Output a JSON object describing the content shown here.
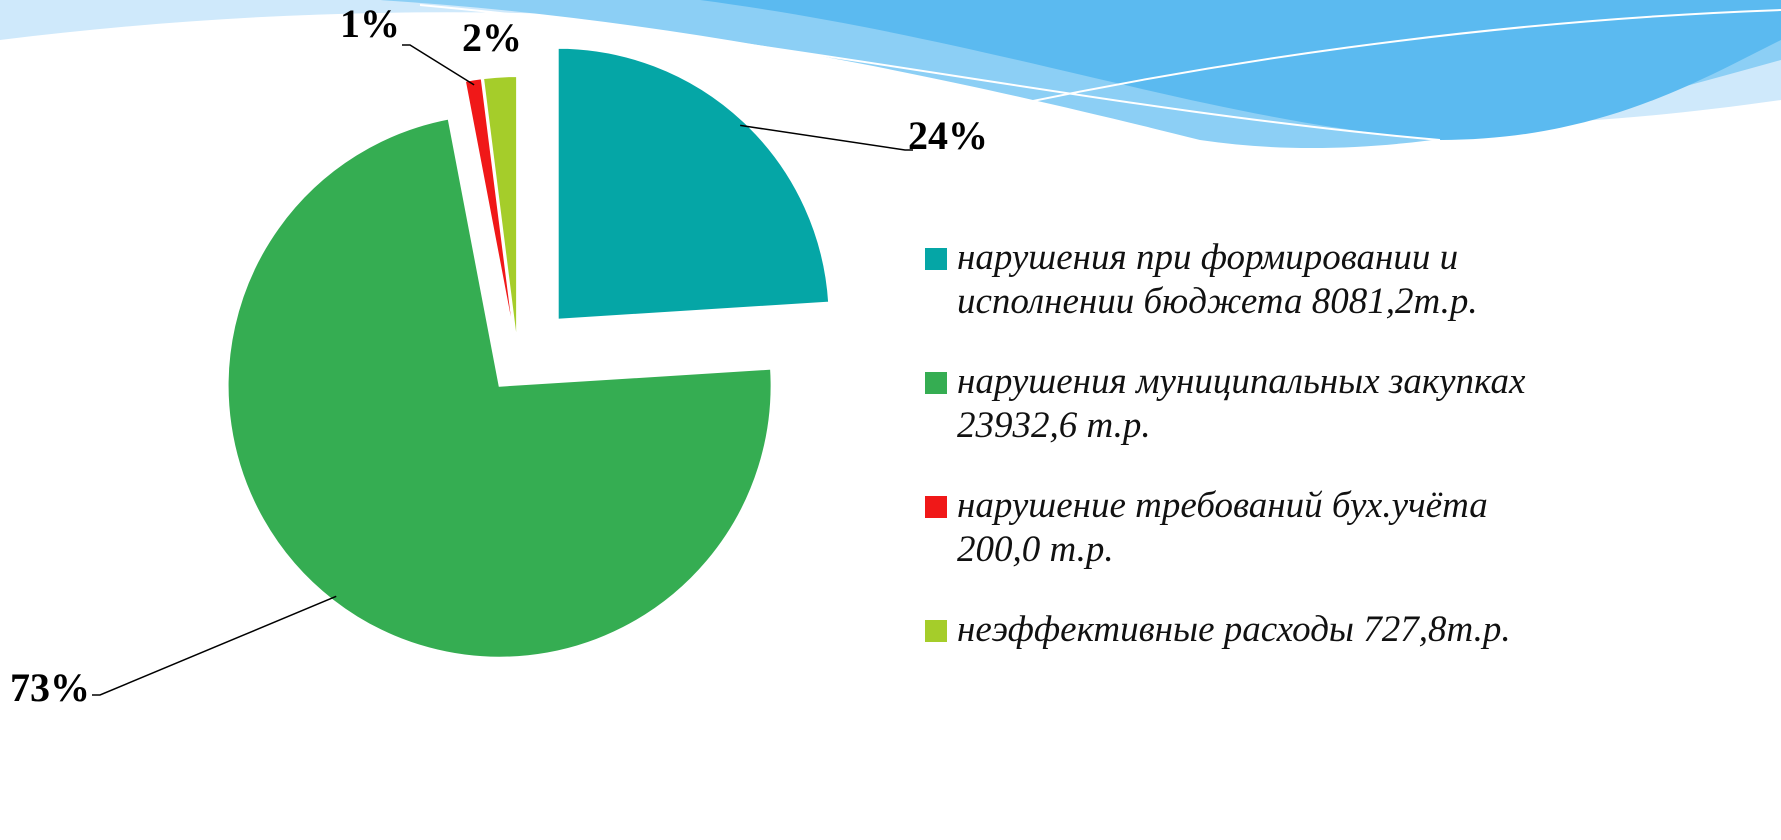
{
  "chart_data": {
    "type": "pie",
    "categories": [
      "нарушения при формировании и исполнении бюджета 8081,2т.р.",
      "нарушения муниципальных закупках 23932,6 т.р.",
      "нарушение требований бух.учёта 200,0 т.р.",
      "неэффективные расходы 727,8т.р."
    ],
    "values": [
      24,
      73,
      1,
      2
    ],
    "value_labels": [
      "24%",
      "73%",
      "1%",
      "2%"
    ],
    "colors": [
      "#05a6a6",
      "#35ad52",
      "#f01818",
      "#a5cd2a"
    ]
  }
}
